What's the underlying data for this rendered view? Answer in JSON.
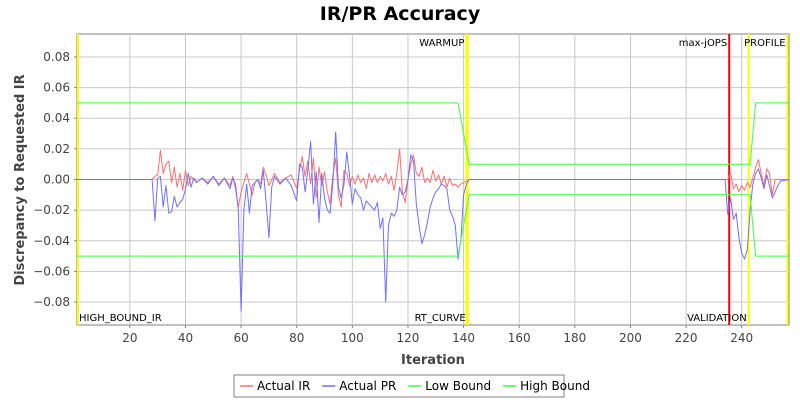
{
  "chart_data": {
    "type": "line",
    "title": "IR/PR Accuracy",
    "xlabel": "Iteration",
    "ylabel": "Discrepancy to Requested IR",
    "xlim": [
      1,
      257
    ],
    "ylim": [
      -0.095,
      0.095
    ],
    "x_ticks": [
      20,
      40,
      60,
      80,
      100,
      120,
      140,
      160,
      180,
      200,
      220,
      240
    ],
    "y_ticks": [
      -0.08,
      -0.06,
      -0.04,
      -0.02,
      0.0,
      0.02,
      0.04,
      0.06,
      0.08
    ],
    "y_tick_labels": [
      "−0.08",
      "−0.06",
      "−0.04",
      "−0.02",
      "0.00",
      "0.02",
      "0.04",
      "0.06",
      "0.08"
    ],
    "grid": true,
    "legend_position": "bottom",
    "markers": [
      {
        "label": "HIGH_BOUND_IR",
        "x": 1,
        "color": "#ffff00",
        "label_pos": "bottom"
      },
      {
        "label": "WARMUP",
        "x": 141,
        "color": "#ffff00",
        "label_pos": "top"
      },
      {
        "label": "RT_CURVE",
        "x": 141.5,
        "color": "#ffff00",
        "label_pos": "bottom"
      },
      {
        "label": "max-jOPS",
        "x": 235.5,
        "color": "#ff0000",
        "label_pos": "top"
      },
      {
        "label": "VALIDATION",
        "x": 242.5,
        "color": "#ffff00",
        "label_pos": "bottom"
      },
      {
        "label": "PROFILE",
        "x": 256.5,
        "color": "#ffff00",
        "label_pos": "top"
      }
    ],
    "series": [
      {
        "name": "Actual IR",
        "color": "#ff7070",
        "points": [
          [
            1,
            0
          ],
          [
            28,
            0
          ],
          [
            29,
            0.002
          ],
          [
            30,
            0.003
          ],
          [
            31,
            0.019
          ],
          [
            32,
            0.004
          ],
          [
            33,
            0.01
          ],
          [
            34,
            0.012
          ],
          [
            35,
            -0.002
          ],
          [
            36,
            0.008
          ],
          [
            37,
            -0.005
          ],
          [
            38,
            0.004
          ],
          [
            39,
            -0.007
          ],
          [
            40,
            0.006
          ],
          [
            41,
            -0.004
          ],
          [
            42,
            0.002
          ],
          [
            44,
            -0.002
          ],
          [
            46,
            0.001
          ],
          [
            48,
            -0.002
          ],
          [
            50,
            0.002
          ],
          [
            52,
            -0.003
          ],
          [
            54,
            0.001
          ],
          [
            56,
            -0.004
          ],
          [
            57,
            0.002
          ],
          [
            58,
            -0.006
          ],
          [
            59,
            -0.018
          ],
          [
            60,
            -0.008
          ],
          [
            61,
            -0.002
          ],
          [
            62,
            0.004
          ],
          [
            63,
            -0.003
          ],
          [
            64,
            -0.01
          ],
          [
            65,
            -0.002
          ],
          [
            66,
            0.0
          ],
          [
            67,
            -0.003
          ],
          [
            68,
            0.008
          ],
          [
            69,
            0.003
          ],
          [
            70,
            -0.004
          ],
          [
            72,
            0.004
          ],
          [
            74,
            -0.002
          ],
          [
            76,
            0.001
          ],
          [
            78,
            0.003
          ],
          [
            80,
            -0.006
          ],
          [
            81,
            0.006
          ],
          [
            82,
            0.015
          ],
          [
            83,
            0.002
          ],
          [
            84,
            0.012
          ],
          [
            85,
            -0.003
          ],
          [
            86,
            0.014
          ],
          [
            87,
            -0.012
          ],
          [
            88,
            0.008
          ],
          [
            89,
            -0.004
          ],
          [
            90,
            0.005
          ],
          [
            91,
            -0.008
          ],
          [
            92,
            -0.016
          ],
          [
            93,
            0.003
          ],
          [
            94,
            0.014
          ],
          [
            95,
            -0.01
          ],
          [
            96,
            -0.018
          ],
          [
            97,
            0.006
          ],
          [
            98,
            0.004
          ],
          [
            99,
            -0.004
          ],
          [
            100,
            0.002
          ],
          [
            101,
            -0.003
          ],
          [
            102,
            0.003
          ],
          [
            103,
            -0.002
          ],
          [
            104,
            0.001
          ],
          [
            105,
            -0.006
          ],
          [
            106,
            0.004
          ],
          [
            107,
            -0.002
          ],
          [
            108,
            0.003
          ],
          [
            109,
            -0.002
          ],
          [
            110,
            0.002
          ],
          [
            111,
            -0.001
          ],
          [
            112,
            0.004
          ],
          [
            113,
            -0.003
          ],
          [
            114,
            0.002
          ],
          [
            115,
            -0.007
          ],
          [
            116,
            0.004
          ],
          [
            117,
            0.02
          ],
          [
            118,
            -0.008
          ],
          [
            119,
            -0.015
          ],
          [
            120,
            0.0
          ],
          [
            121,
            0.01
          ],
          [
            122,
            0.016
          ],
          [
            123,
            0.004
          ],
          [
            124,
            0.002
          ],
          [
            125,
            0.008
          ],
          [
            126,
            -0.002
          ],
          [
            127,
            0.001
          ],
          [
            128,
            -0.002
          ],
          [
            129,
            0.006
          ],
          [
            130,
            -0.001
          ],
          [
            131,
            0.003
          ],
          [
            132,
            -0.003
          ],
          [
            133,
            0.002
          ],
          [
            134,
            -0.005
          ],
          [
            135,
            0.001
          ],
          [
            136,
            -0.004
          ],
          [
            137,
            -0.003
          ],
          [
            138,
            -0.005
          ],
          [
            139,
            -0.003
          ],
          [
            140,
            -0.002
          ],
          [
            142,
            0
          ],
          [
            160,
            0
          ],
          [
            235,
            0
          ],
          [
            236,
            0.004
          ],
          [
            237,
            -0.006
          ],
          [
            238,
            -0.003
          ],
          [
            239,
            -0.008
          ],
          [
            240,
            -0.004
          ],
          [
            241,
            -0.007
          ],
          [
            242,
            -0.002
          ],
          [
            243,
            -0.005
          ],
          [
            244,
            0.001
          ],
          [
            245,
            0.008
          ],
          [
            246,
            0.013
          ],
          [
            247,
            0.004
          ],
          [
            248,
            -0.004
          ],
          [
            249,
            0.007
          ],
          [
            250,
            0.004
          ],
          [
            251,
            -0.01
          ],
          [
            252,
            0
          ],
          [
            257,
            0
          ]
        ]
      },
      {
        "name": "Actual PR",
        "color": "#7070ff",
        "points": [
          [
            1,
            0
          ],
          [
            28,
            0
          ],
          [
            29,
            -0.027
          ],
          [
            30,
            0.001
          ],
          [
            31,
            0.002
          ],
          [
            32,
            -0.018
          ],
          [
            33,
            -0.004
          ],
          [
            34,
            -0.022
          ],
          [
            35,
            -0.021
          ],
          [
            36,
            -0.011
          ],
          [
            37,
            -0.018
          ],
          [
            38,
            -0.015
          ],
          [
            39,
            -0.013
          ],
          [
            40,
            -0.006
          ],
          [
            41,
            0.004
          ],
          [
            42,
            -0.005
          ],
          [
            43,
            0.001
          ],
          [
            44,
            -0.002
          ],
          [
            46,
            0.001
          ],
          [
            48,
            -0.003
          ],
          [
            50,
            0.002
          ],
          [
            52,
            -0.004
          ],
          [
            54,
            0.001
          ],
          [
            56,
            -0.006
          ],
          [
            57,
            0.001
          ],
          [
            58,
            -0.003
          ],
          [
            59,
            -0.02
          ],
          [
            60,
            -0.086
          ],
          [
            61,
            -0.02
          ],
          [
            62,
            -0.003
          ],
          [
            63,
            -0.022
          ],
          [
            64,
            -0.004
          ],
          [
            65,
            -0.002
          ],
          [
            66,
            0.0
          ],
          [
            67,
            -0.006
          ],
          [
            68,
            0.006
          ],
          [
            69,
            -0.015
          ],
          [
            70,
            -0.038
          ],
          [
            71,
            -0.005
          ],
          [
            72,
            0.002
          ],
          [
            74,
            -0.003
          ],
          [
            76,
            0.001
          ],
          [
            78,
            -0.004
          ],
          [
            80,
            -0.014
          ],
          [
            81,
            0.01
          ],
          [
            82,
            0.008
          ],
          [
            83,
            -0.008
          ],
          [
            84,
            0.006
          ],
          [
            85,
            0.025
          ],
          [
            86,
            -0.016
          ],
          [
            87,
            0.005
          ],
          [
            88,
            -0.028
          ],
          [
            89,
            0.004
          ],
          [
            90,
            -0.012
          ],
          [
            91,
            -0.02
          ],
          [
            92,
            -0.022
          ],
          [
            93,
            -0.002
          ],
          [
            94,
            0.031
          ],
          [
            95,
            -0.005
          ],
          [
            96,
            -0.012
          ],
          [
            97,
            -0.003
          ],
          [
            98,
            0.018
          ],
          [
            99,
            0.002
          ],
          [
            100,
            -0.016
          ],
          [
            101,
            -0.006
          ],
          [
            102,
            -0.01
          ],
          [
            103,
            -0.012
          ],
          [
            104,
            -0.02
          ],
          [
            105,
            -0.014
          ],
          [
            106,
            -0.016
          ],
          [
            107,
            -0.018
          ],
          [
            108,
            -0.02
          ],
          [
            109,
            -0.015
          ],
          [
            110,
            -0.032
          ],
          [
            111,
            -0.025
          ],
          [
            112,
            -0.08
          ],
          [
            113,
            -0.03
          ],
          [
            114,
            -0.022
          ],
          [
            115,
            -0.024
          ],
          [
            116,
            -0.02
          ],
          [
            117,
            -0.005
          ],
          [
            118,
            -0.01
          ],
          [
            119,
            -0.008
          ],
          [
            120,
            0.0
          ],
          [
            121,
            0.016
          ],
          [
            122,
            0.012
          ],
          [
            123,
            -0.016
          ],
          [
            124,
            -0.03
          ],
          [
            125,
            -0.042
          ],
          [
            126,
            -0.036
          ],
          [
            127,
            -0.028
          ],
          [
            128,
            -0.018
          ],
          [
            129,
            -0.012
          ],
          [
            130,
            -0.008
          ],
          [
            131,
            -0.006
          ],
          [
            132,
            -0.003
          ],
          [
            133,
            -0.004
          ],
          [
            134,
            -0.006
          ],
          [
            135,
            -0.02
          ],
          [
            136,
            -0.024
          ],
          [
            137,
            -0.03
          ],
          [
            138,
            -0.052
          ],
          [
            139,
            -0.04
          ],
          [
            140,
            -0.01
          ],
          [
            141,
            -0.003
          ],
          [
            142,
            0
          ],
          [
            160,
            0
          ],
          [
            234,
            0
          ],
          [
            235,
            -0.023
          ],
          [
            236,
            -0.012
          ],
          [
            237,
            -0.026
          ],
          [
            238,
            -0.022
          ],
          [
            239,
            -0.038
          ],
          [
            240,
            -0.048
          ],
          [
            241,
            -0.052
          ],
          [
            242,
            -0.046
          ],
          [
            243,
            -0.02
          ],
          [
            244,
            -0.003
          ],
          [
            245,
            0.004
          ],
          [
            246,
            0.007
          ],
          [
            247,
            0.001
          ],
          [
            248,
            -0.006
          ],
          [
            249,
            0.003
          ],
          [
            250,
            -0.004
          ],
          [
            251,
            -0.012
          ],
          [
            252,
            -0.008
          ],
          [
            253,
            -0.004
          ],
          [
            254,
            -0.001
          ],
          [
            257,
            0
          ]
        ]
      },
      {
        "name": "Low Bound",
        "color": "#40ff40",
        "points": [
          [
            1,
            -0.05
          ],
          [
            138,
            -0.05
          ],
          [
            142,
            -0.01
          ],
          [
            243,
            -0.01
          ],
          [
            245,
            -0.05
          ],
          [
            257,
            -0.05
          ]
        ]
      },
      {
        "name": "High Bound",
        "color": "#40ff40",
        "points": [
          [
            1,
            0.05
          ],
          [
            138,
            0.05
          ],
          [
            142,
            0.01
          ],
          [
            243,
            0.01
          ],
          [
            245,
            0.05
          ],
          [
            257,
            0.05
          ]
        ]
      }
    ]
  }
}
